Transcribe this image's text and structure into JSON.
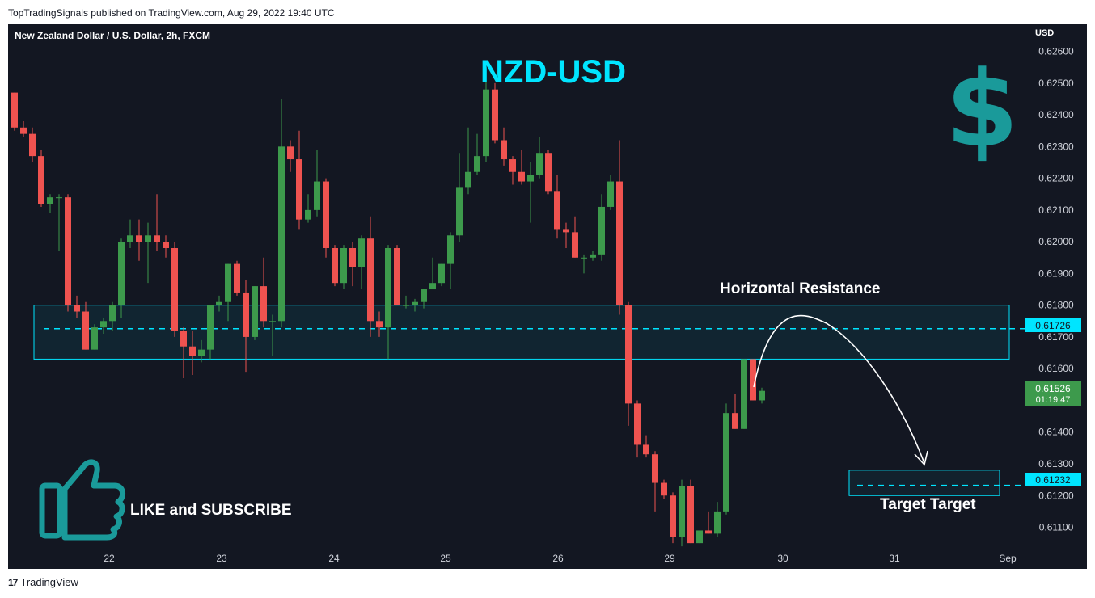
{
  "header": {
    "caption": "TopTradingSignals published on TradingView.com, Aug 29, 2022 19:40 UTC"
  },
  "footer": {
    "brand": "TradingView",
    "logo_mark": "17"
  },
  "chart": {
    "symbol_title": "New Zealand Dollar / U.S. Dollar, 2h, FXCM",
    "big_title": "NZD-USD",
    "currency": "USD",
    "resistance_label": "Horizontal Resistance",
    "target_label": "Target Target",
    "like_text": "LIKE and SUBSCRIBE",
    "price_tag": "0.61726",
    "target_tag": "0.61232",
    "last_price_tag": "0.61526",
    "countdown": "01:19:47"
  },
  "colors": {
    "background": "#131722",
    "up": "#26a69a",
    "up_body": "#3d9a4c",
    "down": "#ef5350",
    "accent": "#00e5ff",
    "title": "#00e5ff",
    "icon": "#1a9a9a",
    "text": "#ffffff",
    "axis_text": "#d1d4dc"
  },
  "chart_data": {
    "type": "candlestick",
    "ylim": [
      0.6103,
      0.6266
    ],
    "y_ticks": [
      "0.62600",
      "0.62500",
      "0.62400",
      "0.62300",
      "0.62200",
      "0.62100",
      "0.62000",
      "0.61900",
      "0.61800",
      "0.61700",
      "0.61600",
      "0.61400",
      "0.61300",
      "0.61200",
      "0.61100"
    ],
    "x_ticks": [
      "22",
      "23",
      "24",
      "25",
      "26",
      "29",
      "30",
      "31",
      "Sep"
    ],
    "resistance_zone": [
      0.6163,
      0.618
    ],
    "resistance_level": 0.61726,
    "target_zone": [
      0.612,
      0.6128
    ],
    "target_level": 0.61232,
    "last_price": 0.61526,
    "candles": [
      [
        0.6247,
        0.6247,
        0.6235,
        0.6236
      ],
      [
        0.6236,
        0.6238,
        0.6233,
        0.6234
      ],
      [
        0.6234,
        0.6236,
        0.6225,
        0.6227
      ],
      [
        0.6227,
        0.6229,
        0.6211,
        0.6212
      ],
      [
        0.6212,
        0.6215,
        0.6209,
        0.6214
      ],
      [
        0.6214,
        0.6215,
        0.6197,
        0.6214
      ],
      [
        0.6214,
        0.6215,
        0.6178,
        0.618
      ],
      [
        0.618,
        0.6183,
        0.6176,
        0.6178
      ],
      [
        0.6178,
        0.6181,
        0.6166,
        0.6166
      ],
      [
        0.6166,
        0.6174,
        0.6166,
        0.6173
      ],
      [
        0.6173,
        0.6176,
        0.6171,
        0.6175
      ],
      [
        0.6175,
        0.6181,
        0.6172,
        0.618
      ],
      [
        0.618,
        0.6201,
        0.6176,
        0.62
      ],
      [
        0.62,
        0.6207,
        0.6198,
        0.6202
      ],
      [
        0.6202,
        0.6207,
        0.6194,
        0.62
      ],
      [
        0.62,
        0.6206,
        0.6187,
        0.6202
      ],
      [
        0.6202,
        0.6215,
        0.6197,
        0.62
      ],
      [
        0.62,
        0.6202,
        0.6195,
        0.6198
      ],
      [
        0.6198,
        0.62,
        0.617,
        0.6172
      ],
      [
        0.6172,
        0.6173,
        0.6157,
        0.6167
      ],
      [
        0.6167,
        0.6172,
        0.6158,
        0.6164
      ],
      [
        0.6164,
        0.6169,
        0.6162,
        0.6166
      ],
      [
        0.6166,
        0.618,
        0.6163,
        0.618
      ],
      [
        0.618,
        0.6183,
        0.6178,
        0.6181
      ],
      [
        0.6181,
        0.6193,
        0.6175,
        0.6193
      ],
      [
        0.6193,
        0.6194,
        0.6183,
        0.6184
      ],
      [
        0.6184,
        0.6188,
        0.6159,
        0.617
      ],
      [
        0.617,
        0.6186,
        0.6169,
        0.6186
      ],
      [
        0.6186,
        0.6195,
        0.6173,
        0.6175
      ],
      [
        0.6175,
        0.6177,
        0.6164,
        0.6175
      ],
      [
        0.6175,
        0.6245,
        0.6173,
        0.623
      ],
      [
        0.623,
        0.6232,
        0.6222,
        0.6226
      ],
      [
        0.6226,
        0.6235,
        0.6204,
        0.6207
      ],
      [
        0.6207,
        0.6215,
        0.6206,
        0.621
      ],
      [
        0.621,
        0.6229,
        0.6208,
        0.6219
      ],
      [
        0.6219,
        0.622,
        0.6195,
        0.6198
      ],
      [
        0.6198,
        0.6199,
        0.6186,
        0.6187
      ],
      [
        0.6187,
        0.6199,
        0.6185,
        0.6198
      ],
      [
        0.6198,
        0.62,
        0.6186,
        0.6192
      ],
      [
        0.6192,
        0.6202,
        0.6185,
        0.6201
      ],
      [
        0.6201,
        0.6208,
        0.617,
        0.6175
      ],
      [
        0.6175,
        0.6178,
        0.617,
        0.6173
      ],
      [
        0.6173,
        0.6199,
        0.6163,
        0.6198
      ],
      [
        0.6198,
        0.6199,
        0.618,
        0.618
      ],
      [
        0.618,
        0.6183,
        0.6179,
        0.618
      ],
      [
        0.618,
        0.6182,
        0.6178,
        0.6181
      ],
      [
        0.6181,
        0.6185,
        0.6179,
        0.6185
      ],
      [
        0.6185,
        0.6195,
        0.6185,
        0.6187
      ],
      [
        0.6187,
        0.6193,
        0.6186,
        0.6193
      ],
      [
        0.6193,
        0.6203,
        0.6185,
        0.6202
      ],
      [
        0.6202,
        0.6228,
        0.62,
        0.6217
      ],
      [
        0.6217,
        0.6236,
        0.6215,
        0.6222
      ],
      [
        0.6222,
        0.6234,
        0.6221,
        0.6227
      ],
      [
        0.6227,
        0.6251,
        0.6225,
        0.6248
      ],
      [
        0.6248,
        0.625,
        0.6231,
        0.6232
      ],
      [
        0.6232,
        0.6236,
        0.6224,
        0.6226
      ],
      [
        0.6226,
        0.6227,
        0.6218,
        0.6222
      ],
      [
        0.6222,
        0.6229,
        0.6218,
        0.6219
      ],
      [
        0.6219,
        0.6225,
        0.6206,
        0.6221
      ],
      [
        0.6221,
        0.6233,
        0.622,
        0.6228
      ],
      [
        0.6228,
        0.6229,
        0.6215,
        0.6216
      ],
      [
        0.6216,
        0.6221,
        0.6201,
        0.6204
      ],
      [
        0.6204,
        0.6206,
        0.6198,
        0.6203
      ],
      [
        0.6203,
        0.6208,
        0.6195,
        0.6195
      ],
      [
        0.6195,
        0.6196,
        0.619,
        0.6195
      ],
      [
        0.6195,
        0.6197,
        0.6194,
        0.6196
      ],
      [
        0.6196,
        0.6215,
        0.6194,
        0.6211
      ],
      [
        0.6211,
        0.6221,
        0.621,
        0.6219
      ],
      [
        0.6219,
        0.6232,
        0.6177,
        0.618
      ],
      [
        0.618,
        0.6181,
        0.6142,
        0.6149
      ],
      [
        0.6149,
        0.615,
        0.6132,
        0.6136
      ],
      [
        0.6136,
        0.6139,
        0.6132,
        0.6133
      ],
      [
        0.6133,
        0.6134,
        0.6115,
        0.6124
      ],
      [
        0.6124,
        0.6125,
        0.6119,
        0.612
      ],
      [
        0.612,
        0.6121,
        0.6105,
        0.6107
      ],
      [
        0.6107,
        0.6125,
        0.6104,
        0.6123
      ],
      [
        0.6123,
        0.6125,
        0.6105,
        0.6105
      ],
      [
        0.6105,
        0.6109,
        0.6105,
        0.6109
      ],
      [
        0.6109,
        0.6115,
        0.6108,
        0.6108
      ],
      [
        0.6108,
        0.6118,
        0.6107,
        0.6115
      ],
      [
        0.6115,
        0.6149,
        0.6114,
        0.6146
      ],
      [
        0.6146,
        0.6152,
        0.6141,
        0.6141
      ],
      [
        0.6141,
        0.6163,
        0.6141,
        0.6163
      ],
      [
        0.6163,
        0.6163,
        0.615,
        0.615
      ],
      [
        0.615,
        0.6154,
        0.6149,
        0.6153
      ]
    ]
  }
}
